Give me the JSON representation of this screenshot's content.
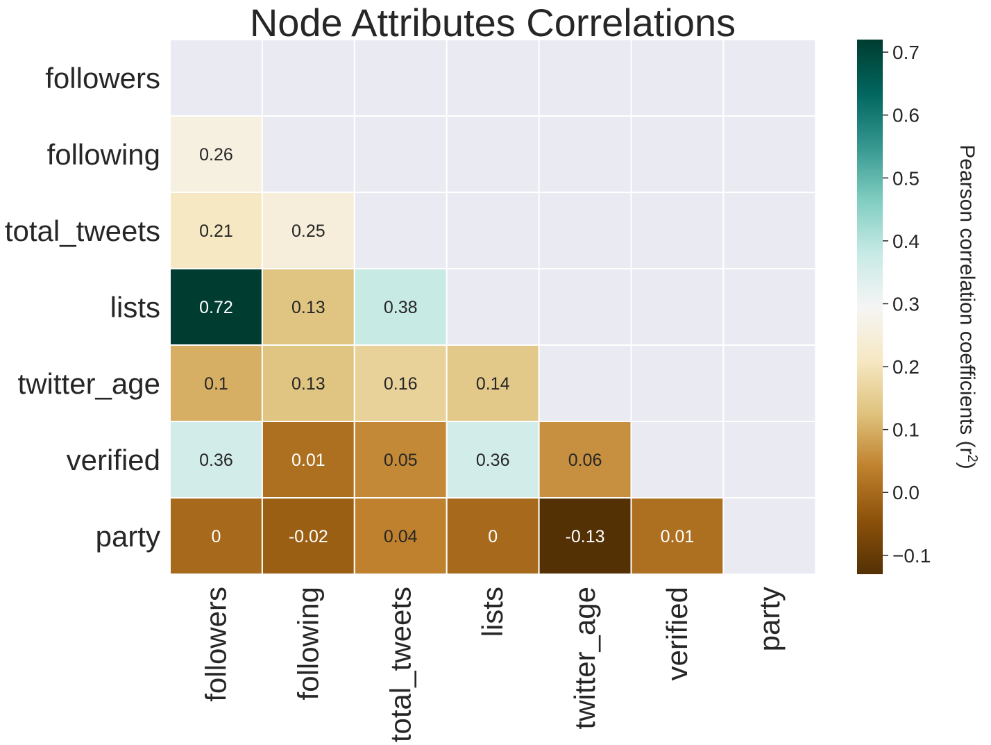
{
  "chart_data": {
    "type": "heatmap",
    "title": "Node Attributes Correlations",
    "rows": [
      "followers",
      "following",
      "total_tweets",
      "lists",
      "twitter_age",
      "verified",
      "party"
    ],
    "columns": [
      "followers",
      "following",
      "total_tweets",
      "lists",
      "twitter_age",
      "verified",
      "party"
    ],
    "mask": "upper-triangle-including-diagonal",
    "values": [
      [
        null,
        null,
        null,
        null,
        null,
        null,
        null
      ],
      [
        0.26,
        null,
        null,
        null,
        null,
        null,
        null
      ],
      [
        0.21,
        0.25,
        null,
        null,
        null,
        null,
        null
      ],
      [
        0.72,
        0.13,
        0.38,
        null,
        null,
        null,
        null
      ],
      [
        0.1,
        0.13,
        0.16,
        0.14,
        null,
        null,
        null
      ],
      [
        0.36,
        0.01,
        0.05,
        0.36,
        0.06,
        null,
        null
      ],
      [
        0,
        -0.02,
        0.04,
        0,
        -0.13,
        0.01,
        null
      ]
    ],
    "value_labels": [
      [
        "",
        "",
        "",
        "",
        "",
        "",
        ""
      ],
      [
        "0.26",
        "",
        "",
        "",
        "",
        "",
        ""
      ],
      [
        "0.21",
        "0.25",
        "",
        "",
        "",
        "",
        ""
      ],
      [
        "0.72",
        "0.13",
        "0.38",
        "",
        "",
        "",
        ""
      ],
      [
        "0.1",
        "0.13",
        "0.16",
        "0.14",
        "",
        "",
        ""
      ],
      [
        "0.36",
        "0.01",
        "0.05",
        "0.36",
        "0.06",
        "",
        ""
      ],
      [
        "0",
        "-0.02",
        "0.04",
        "0",
        "-0.13",
        "0.01",
        ""
      ]
    ],
    "colorbar": {
      "label_main": "Pearson correlation coefficients (r",
      "label_sup": "2",
      "label_end": ")",
      "vmin": -0.13,
      "vmax": 0.72,
      "colormap": "BrBG",
      "ticks": [
        -0.1,
        0.0,
        0.1,
        0.2,
        0.3,
        0.4,
        0.5,
        0.6,
        0.7
      ],
      "tick_labels": [
        "−0.1",
        "0.0",
        "0.1",
        "0.2",
        "0.3",
        "0.4",
        "0.5",
        "0.6",
        "0.7"
      ]
    },
    "colors": {
      "masked_background": "#eaeaf2",
      "grid_lines": "#ffffff",
      "text_dark": "#262626",
      "text_light": "#ffffff",
      "colormap_stops": [
        "#543005",
        "#8c510a",
        "#bf812d",
        "#dfc27d",
        "#f6e8c3",
        "#f5f5f5",
        "#c7eae5",
        "#80cdc1",
        "#35978f",
        "#01665e",
        "#003c30"
      ]
    }
  }
}
